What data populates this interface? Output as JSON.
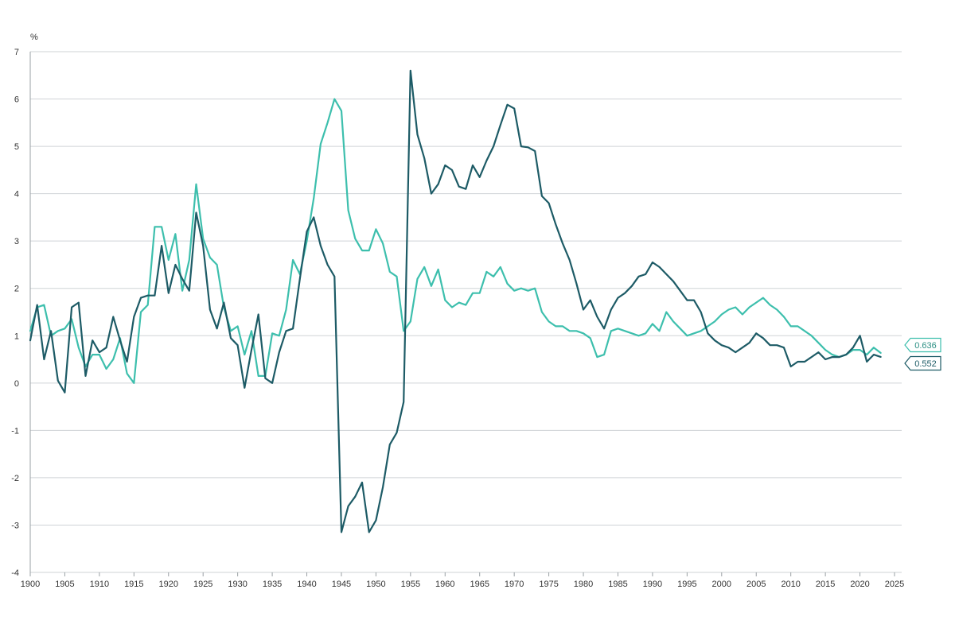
{
  "chart_data": {
    "type": "line",
    "title": "",
    "xlabel": "",
    "ylabel": "%",
    "xlim": [
      1900,
      2025
    ],
    "ylim": [
      -4,
      7
    ],
    "xticks": [
      "1900",
      "1905",
      "1910",
      "1915",
      "1920",
      "1925",
      "1930",
      "1935",
      "1940",
      "1945",
      "1950",
      "1955",
      "1960",
      "1965",
      "1970",
      "1975",
      "1980",
      "1985",
      "1990",
      "1995",
      "2000",
      "2005",
      "2010",
      "2015",
      "2020",
      "2025"
    ],
    "yticks": [
      "-4",
      "-3",
      "-2",
      "-1",
      "0",
      "1",
      "2",
      "3",
      "4",
      "5",
      "6",
      "7"
    ],
    "grid": true,
    "legend": "none",
    "end_labels": [
      "0.636",
      "0.552"
    ],
    "series": [
      {
        "color": "#3dbfad",
        "end_value": 0.636,
        "points": [
          [
            1900,
            1.1
          ],
          [
            1901,
            1.6
          ],
          [
            1902,
            1.65
          ],
          [
            1903,
            1.0
          ],
          [
            1904,
            1.1
          ],
          [
            1905,
            1.15
          ],
          [
            1906,
            1.35
          ],
          [
            1907,
            0.75
          ],
          [
            1908,
            0.35
          ],
          [
            1909,
            0.6
          ],
          [
            1910,
            0.6
          ],
          [
            1911,
            0.3
          ],
          [
            1912,
            0.5
          ],
          [
            1913,
            0.95
          ],
          [
            1914,
            0.2
          ],
          [
            1915,
            0.0
          ],
          [
            1916,
            1.5
          ],
          [
            1917,
            1.65
          ],
          [
            1918,
            3.3
          ],
          [
            1919,
            3.3
          ],
          [
            1920,
            2.6
          ],
          [
            1921,
            3.15
          ],
          [
            1922,
            1.95
          ],
          [
            1923,
            2.6
          ],
          [
            1924,
            4.2
          ],
          [
            1925,
            3.05
          ],
          [
            1926,
            2.65
          ],
          [
            1927,
            2.5
          ],
          [
            1928,
            1.6
          ],
          [
            1929,
            1.1
          ],
          [
            1930,
            1.2
          ],
          [
            1931,
            0.6
          ],
          [
            1932,
            1.1
          ],
          [
            1933,
            0.15
          ],
          [
            1934,
            0.15
          ],
          [
            1935,
            1.05
          ],
          [
            1936,
            1.0
          ],
          [
            1937,
            1.55
          ],
          [
            1938,
            2.6
          ],
          [
            1939,
            2.3
          ],
          [
            1940,
            3.0
          ],
          [
            1941,
            3.9
          ],
          [
            1942,
            5.05
          ],
          [
            1943,
            5.5
          ],
          [
            1944,
            6.0
          ],
          [
            1945,
            5.75
          ],
          [
            1946,
            3.65
          ],
          [
            1947,
            3.05
          ],
          [
            1948,
            2.8
          ],
          [
            1949,
            2.8
          ],
          [
            1950,
            3.25
          ],
          [
            1951,
            2.95
          ],
          [
            1952,
            2.35
          ],
          [
            1953,
            2.25
          ],
          [
            1954,
            1.1
          ],
          [
            1955,
            1.3
          ],
          [
            1956,
            2.2
          ],
          [
            1957,
            2.45
          ],
          [
            1958,
            2.05
          ],
          [
            1959,
            2.4
          ],
          [
            1960,
            1.75
          ],
          [
            1961,
            1.6
          ],
          [
            1962,
            1.7
          ],
          [
            1963,
            1.65
          ],
          [
            1964,
            1.9
          ],
          [
            1965,
            1.9
          ],
          [
            1966,
            2.35
          ],
          [
            1967,
            2.25
          ],
          [
            1968,
            2.45
          ],
          [
            1969,
            2.1
          ],
          [
            1970,
            1.95
          ],
          [
            1971,
            2.0
          ],
          [
            1972,
            1.95
          ],
          [
            1973,
            2.0
          ],
          [
            1974,
            1.5
          ],
          [
            1975,
            1.3
          ],
          [
            1976,
            1.2
          ],
          [
            1977,
            1.2
          ],
          [
            1978,
            1.1
          ],
          [
            1979,
            1.1
          ],
          [
            1980,
            1.05
          ],
          [
            1981,
            0.95
          ],
          [
            1982,
            0.55
          ],
          [
            1983,
            0.6
          ],
          [
            1984,
            1.1
          ],
          [
            1985,
            1.15
          ],
          [
            1986,
            1.1
          ],
          [
            1987,
            1.05
          ],
          [
            1988,
            1.0
          ],
          [
            1989,
            1.05
          ],
          [
            1990,
            1.25
          ],
          [
            1991,
            1.1
          ],
          [
            1992,
            1.5
          ],
          [
            1993,
            1.3
          ],
          [
            1994,
            1.15
          ],
          [
            1995,
            1.0
          ],
          [
            1996,
            1.05
          ],
          [
            1997,
            1.1
          ],
          [
            1998,
            1.2
          ],
          [
            1999,
            1.3
          ],
          [
            2000,
            1.45
          ],
          [
            2001,
            1.55
          ],
          [
            2002,
            1.6
          ],
          [
            2003,
            1.45
          ],
          [
            2004,
            1.6
          ],
          [
            2005,
            1.7
          ],
          [
            2006,
            1.8
          ],
          [
            2007,
            1.65
          ],
          [
            2008,
            1.55
          ],
          [
            2009,
            1.4
          ],
          [
            2010,
            1.2
          ],
          [
            2011,
            1.2
          ],
          [
            2012,
            1.1
          ],
          [
            2013,
            1.0
          ],
          [
            2014,
            0.85
          ],
          [
            2015,
            0.7
          ],
          [
            2016,
            0.6
          ],
          [
            2017,
            0.55
          ],
          [
            2018,
            0.6
          ],
          [
            2019,
            0.7
          ],
          [
            2020,
            0.7
          ],
          [
            2021,
            0.6
          ],
          [
            2022,
            0.75
          ],
          [
            2023,
            0.636
          ]
        ]
      },
      {
        "color": "#1d5b66",
        "end_value": 0.552,
        "points": [
          [
            1900,
            0.9
          ],
          [
            1901,
            1.65
          ],
          [
            1902,
            0.5
          ],
          [
            1903,
            1.1
          ],
          [
            1904,
            0.05
          ],
          [
            1905,
            -0.2
          ],
          [
            1906,
            1.6
          ],
          [
            1907,
            1.7
          ],
          [
            1908,
            0.15
          ],
          [
            1909,
            0.9
          ],
          [
            1910,
            0.65
          ],
          [
            1911,
            0.75
          ],
          [
            1912,
            1.4
          ],
          [
            1913,
            0.9
          ],
          [
            1914,
            0.45
          ],
          [
            1915,
            1.4
          ],
          [
            1916,
            1.8
          ],
          [
            1917,
            1.85
          ],
          [
            1918,
            1.85
          ],
          [
            1919,
            2.9
          ],
          [
            1920,
            1.9
          ],
          [
            1921,
            2.5
          ],
          [
            1922,
            2.2
          ],
          [
            1923,
            1.95
          ],
          [
            1924,
            3.6
          ],
          [
            1925,
            2.9
          ],
          [
            1926,
            1.55
          ],
          [
            1927,
            1.15
          ],
          [
            1928,
            1.7
          ],
          [
            1929,
            0.95
          ],
          [
            1930,
            0.8
          ],
          [
            1931,
            -0.1
          ],
          [
            1932,
            0.7
          ],
          [
            1933,
            1.45
          ],
          [
            1934,
            0.1
          ],
          [
            1935,
            0.0
          ],
          [
            1936,
            0.65
          ],
          [
            1937,
            1.1
          ],
          [
            1938,
            1.15
          ],
          [
            1939,
            2.2
          ],
          [
            1940,
            3.2
          ],
          [
            1941,
            3.5
          ],
          [
            1942,
            2.9
          ],
          [
            1943,
            2.5
          ],
          [
            1944,
            2.25
          ],
          [
            1945,
            -3.15
          ],
          [
            1946,
            -2.6
          ],
          [
            1947,
            -2.4
          ],
          [
            1948,
            -2.1
          ],
          [
            1949,
            -3.15
          ],
          [
            1950,
            -2.9
          ],
          [
            1951,
            -2.2
          ],
          [
            1952,
            -1.3
          ],
          [
            1953,
            -1.05
          ],
          [
            1954,
            -0.4
          ],
          [
            1955,
            6.6
          ],
          [
            1956,
            5.25
          ],
          [
            1957,
            4.75
          ],
          [
            1958,
            4.0
          ],
          [
            1959,
            4.2
          ],
          [
            1960,
            4.6
          ],
          [
            1961,
            4.5
          ],
          [
            1962,
            4.15
          ],
          [
            1963,
            4.1
          ],
          [
            1964,
            4.6
          ],
          [
            1965,
            4.35
          ],
          [
            1966,
            4.7
          ],
          [
            1967,
            5.0
          ],
          [
            1968,
            5.45
          ],
          [
            1969,
            5.88
          ],
          [
            1970,
            5.8
          ],
          [
            1971,
            5.0
          ],
          [
            1972,
            4.98
          ],
          [
            1973,
            4.9
          ],
          [
            1974,
            3.95
          ],
          [
            1975,
            3.8
          ],
          [
            1976,
            3.35
          ],
          [
            1977,
            2.95
          ],
          [
            1978,
            2.6
          ],
          [
            1979,
            2.1
          ],
          [
            1980,
            1.55
          ],
          [
            1981,
            1.75
          ],
          [
            1982,
            1.4
          ],
          [
            1983,
            1.15
          ],
          [
            1984,
            1.55
          ],
          [
            1985,
            1.8
          ],
          [
            1986,
            1.9
          ],
          [
            1987,
            2.05
          ],
          [
            1988,
            2.25
          ],
          [
            1989,
            2.3
          ],
          [
            1990,
            2.55
          ],
          [
            1991,
            2.45
          ],
          [
            1992,
            2.3
          ],
          [
            1993,
            2.15
          ],
          [
            1994,
            1.95
          ],
          [
            1995,
            1.75
          ],
          [
            1996,
            1.75
          ],
          [
            1997,
            1.5
          ],
          [
            1998,
            1.05
          ],
          [
            1999,
            0.9
          ],
          [
            2000,
            0.8
          ],
          [
            2001,
            0.75
          ],
          [
            2002,
            0.65
          ],
          [
            2003,
            0.75
          ],
          [
            2004,
            0.85
          ],
          [
            2005,
            1.05
          ],
          [
            2006,
            0.95
          ],
          [
            2007,
            0.8
          ],
          [
            2008,
            0.8
          ],
          [
            2009,
            0.75
          ],
          [
            2010,
            0.35
          ],
          [
            2011,
            0.45
          ],
          [
            2012,
            0.45
          ],
          [
            2013,
            0.55
          ],
          [
            2014,
            0.65
          ],
          [
            2015,
            0.5
          ],
          [
            2016,
            0.55
          ],
          [
            2017,
            0.55
          ],
          [
            2018,
            0.6
          ],
          [
            2019,
            0.75
          ],
          [
            2020,
            1.0
          ],
          [
            2021,
            0.45
          ],
          [
            2022,
            0.6
          ],
          [
            2023,
            0.552
          ]
        ]
      }
    ]
  }
}
